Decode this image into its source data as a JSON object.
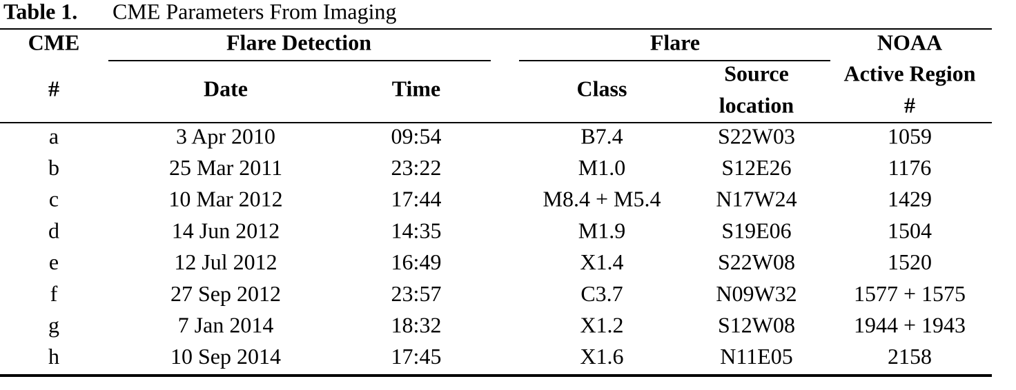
{
  "caption": {
    "label": "Table 1.",
    "title": "CME Parameters From Imaging"
  },
  "table": {
    "group_headers": {
      "cme": "CME",
      "detection": "Flare Detection",
      "flare": "Flare",
      "noaa": "NOAA"
    },
    "column_headers": {
      "cme": "#",
      "date": "Date",
      "time": "Time",
      "class": "Class",
      "source": [
        "Source",
        "location"
      ],
      "noaa": [
        "Active Region",
        "#"
      ]
    },
    "rows": [
      [
        "a",
        "3 Apr 2010",
        "09:54",
        "B7.4",
        "S22W03",
        "1059"
      ],
      [
        "b",
        "25 Mar 2011",
        "23:22",
        "M1.0",
        "S12E26",
        "1176"
      ],
      [
        "c",
        "10 Mar 2012",
        "17:44",
        "M8.4 + M5.4",
        "N17W24",
        "1429"
      ],
      [
        "d",
        "14 Jun 2012",
        "14:35",
        "M1.9",
        "S19E06",
        "1504"
      ],
      [
        "e",
        "12 Jul 2012",
        "16:49",
        "X1.4",
        "S22W08",
        "1520"
      ],
      [
        "f",
        "27 Sep 2012",
        "23:57",
        "C3.7",
        "N09W32",
        "1577 + 1575"
      ],
      [
        "g",
        "7 Jan 2014",
        "18:32",
        "X1.2",
        "S12W08",
        "1944 + 1943"
      ],
      [
        "h",
        "10 Sep 2014",
        "17:45",
        "X1.6",
        "N11E05",
        "2158"
      ]
    ]
  }
}
